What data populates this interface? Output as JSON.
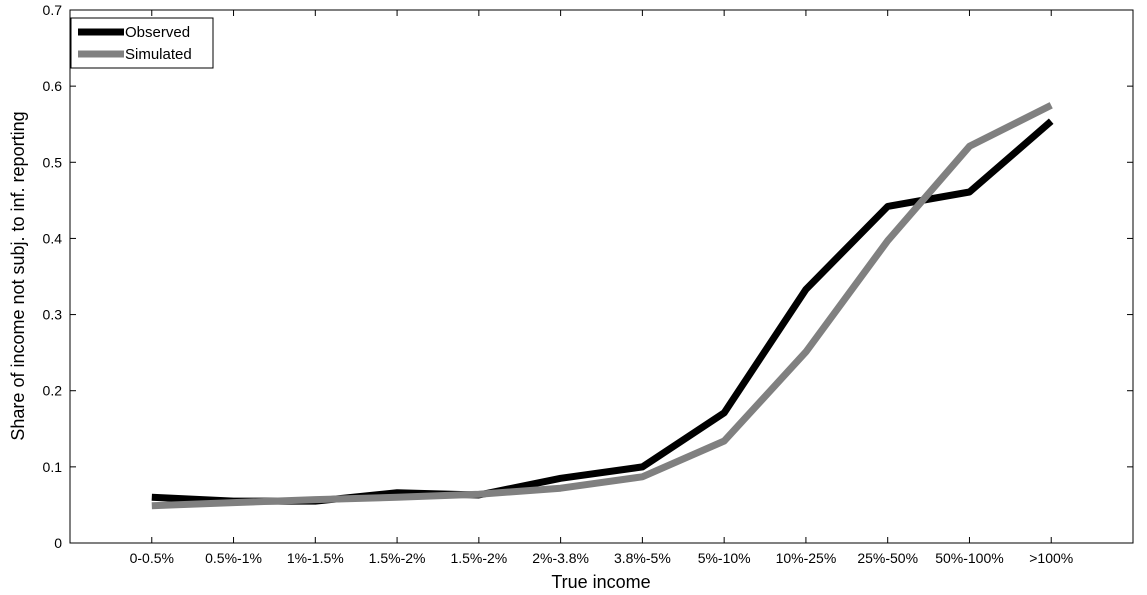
{
  "chart_data": {
    "type": "line",
    "title": "",
    "xlabel": "True income",
    "ylabel": "Share of income not subj. to inf. reporting",
    "categories": [
      "0-0.5%",
      "0.5%-1%",
      "1%-1.5%",
      "1.5%-2%",
      "1.5%-2%",
      "2%-3.8%",
      "3.8%-5%",
      "5%-10%",
      "10%-25%",
      "25%-50%",
      "50%-100%",
      ">100%"
    ],
    "ylim": [
      0,
      0.7
    ],
    "yticks": [
      "0",
      "0.1",
      "0.2",
      "0.3",
      "0.4",
      "0.5",
      "0.6",
      "0.7"
    ],
    "grid": false,
    "legend_position": "top-left",
    "series": [
      {
        "name": "Observed",
        "color": "#000000",
        "values": [
          0.06,
          0.055,
          0.055,
          0.066,
          0.063,
          0.085,
          0.1,
          0.171,
          0.333,
          0.442,
          0.461,
          0.554
        ]
      },
      {
        "name": "Simulated",
        "color": "#808080",
        "values": [
          0.049,
          0.053,
          0.057,
          0.06,
          0.064,
          0.072,
          0.087,
          0.134,
          0.251,
          0.397,
          0.521,
          0.575
        ]
      }
    ]
  }
}
